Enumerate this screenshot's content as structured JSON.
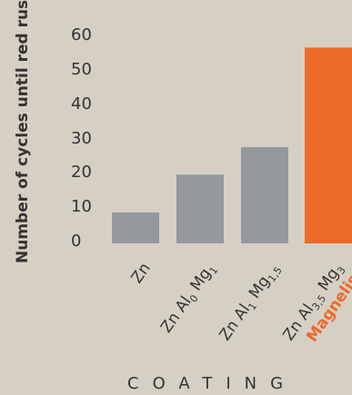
{
  "chart_data": {
    "type": "bar",
    "ylabel": "Number of cycles until red rust",
    "xlabel": "COATING",
    "ylim": [
      0,
      60
    ],
    "yticks": [
      0,
      10,
      20,
      30,
      40,
      50,
      60
    ],
    "categories": [
      {
        "base": "Zn",
        "parts": []
      },
      {
        "base": "Zn Al",
        "parts": [
          {
            "sub": "0"
          },
          {
            "text": " Mg"
          },
          {
            "sub": "1"
          }
        ]
      },
      {
        "base": "Zn Al",
        "parts": [
          {
            "sub": "1"
          },
          {
            "text": " Mg"
          },
          {
            "sub": "1,5"
          }
        ]
      },
      {
        "base": "Zn Al",
        "parts": [
          {
            "sub": "3,5"
          },
          {
            "text": " Mg"
          },
          {
            "sub": "3"
          }
        ],
        "brand": "Magnelis"
      }
    ],
    "values": [
      9,
      20,
      28,
      57
    ],
    "colors": [
      "#95989c",
      "#95989c",
      "#95989c",
      "#ee6a2a"
    ]
  }
}
